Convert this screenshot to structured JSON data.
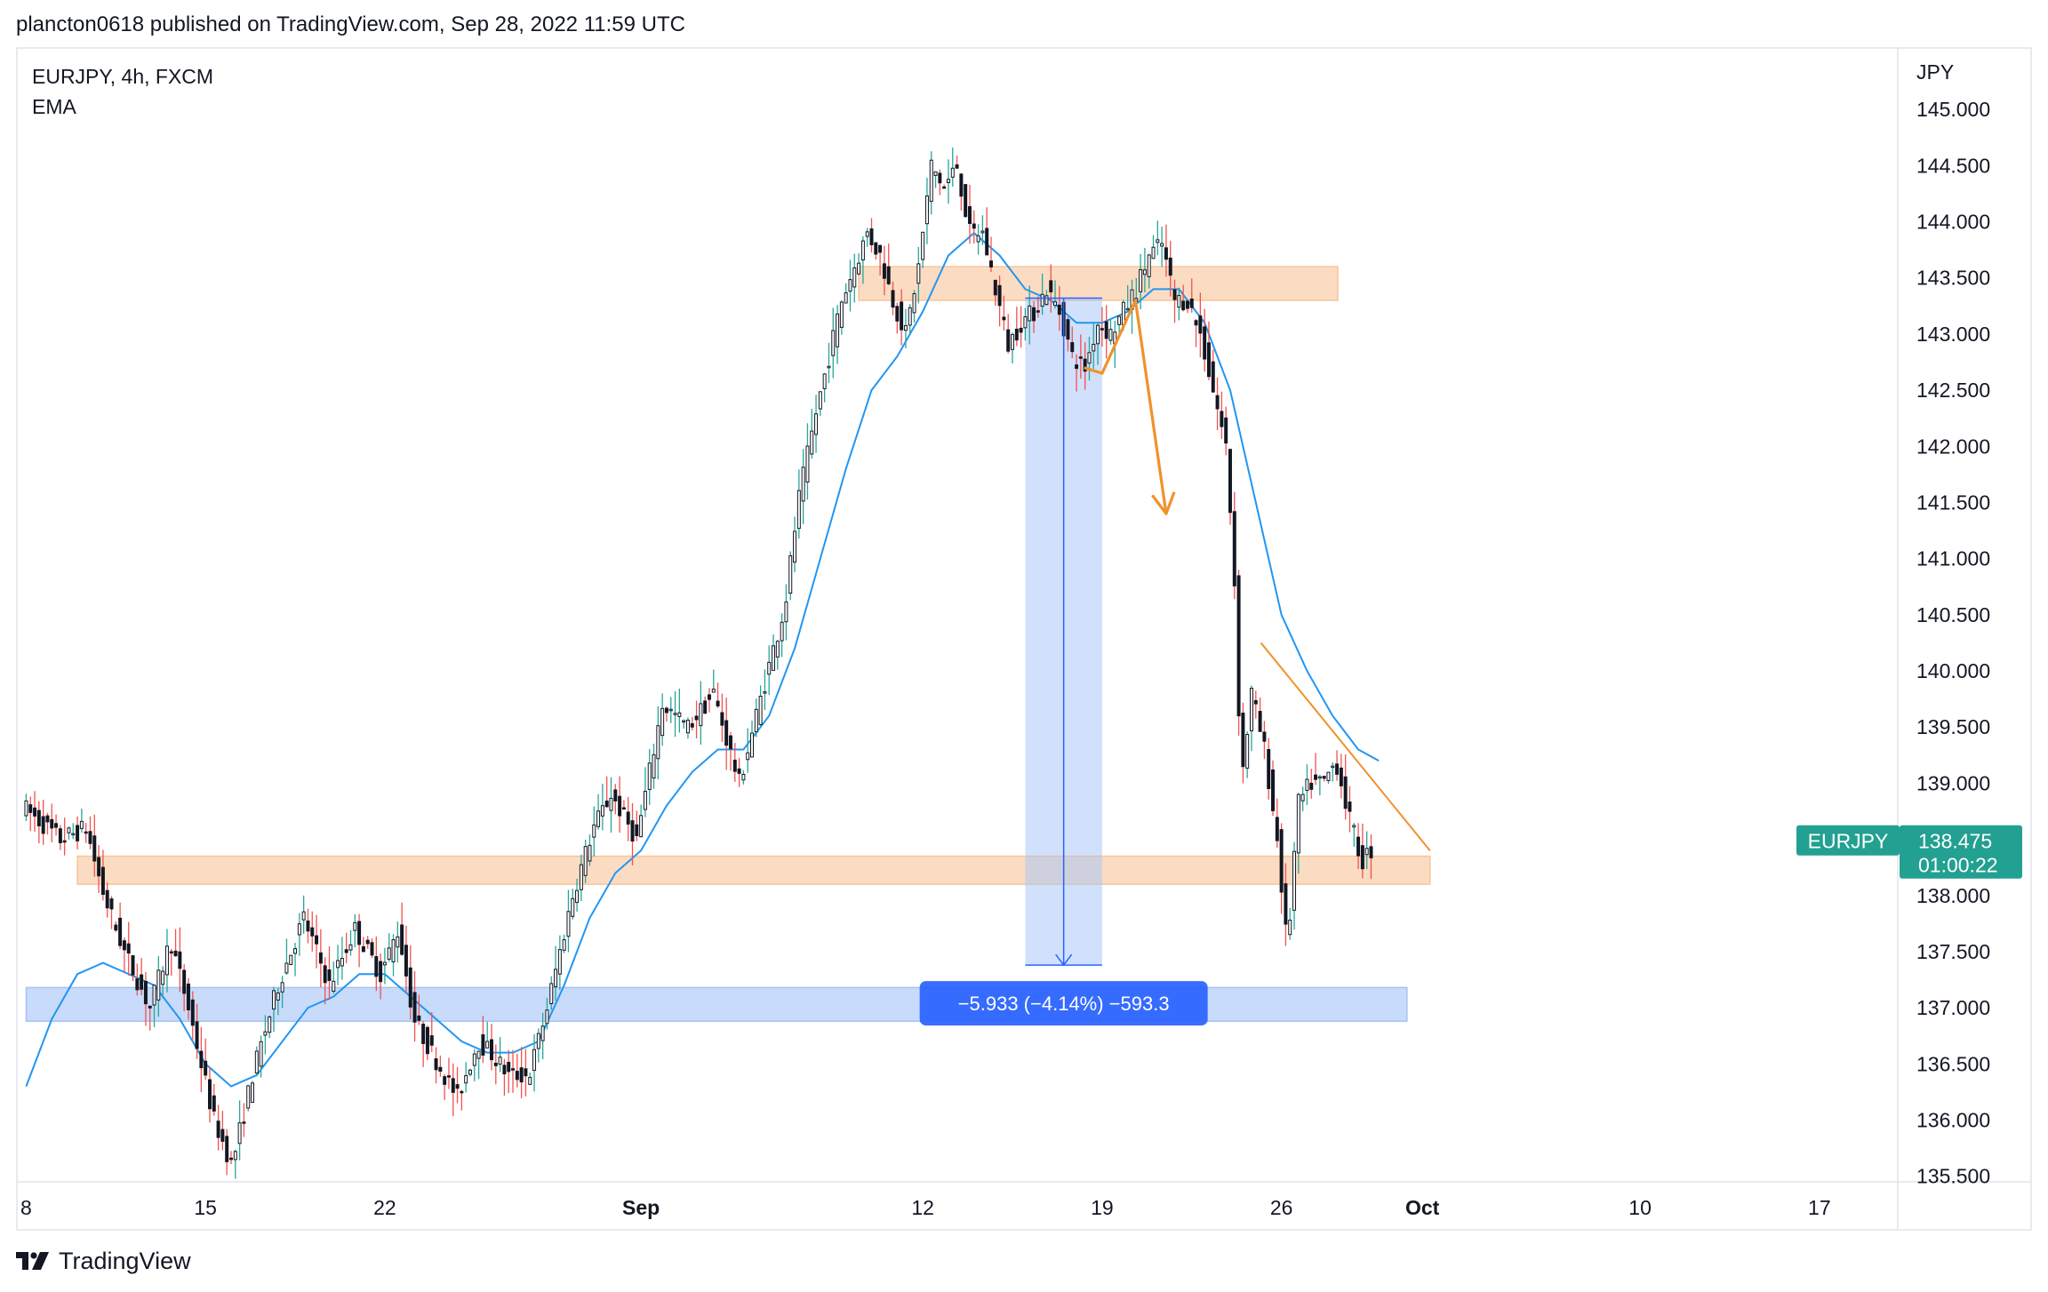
{
  "header": {
    "published": "plancton0618 published on TradingView.com, Sep 28, 2022 11:59 UTC"
  },
  "legend": {
    "symbol": "EURJPY, 4h, FXCM",
    "indicator": "EMA"
  },
  "footer": {
    "brand": "TradingView",
    "logo_icon": "tradingview-logo-icon"
  },
  "colors": {
    "up": "#26a69a",
    "down": "#ef5350",
    "ema": "#2196f3",
    "resistance_zone": "#f8c59a",
    "target_zone": "#a4c3f7",
    "measure": "#2962ff",
    "arrow": "#f0922b",
    "badge": "#22a091"
  },
  "chart_data": {
    "type": "candlestick",
    "symbol": "EURJPY",
    "interval": "4h",
    "source": "FXCM",
    "currency": "JPY",
    "y_ticks": [
      "145.000",
      "144.500",
      "144.000",
      "143.500",
      "143.000",
      "142.500",
      "142.000",
      "141.500",
      "141.000",
      "140.500",
      "140.000",
      "139.500",
      "139.000",
      "138.000",
      "137.500",
      "137.000",
      "136.500",
      "136.000",
      "135.500"
    ],
    "y_tick_values": [
      145.0,
      144.5,
      144.0,
      143.5,
      143.0,
      142.5,
      142.0,
      141.5,
      141.0,
      140.5,
      140.0,
      139.5,
      139.0,
      138.0,
      137.5,
      137.0,
      136.5,
      136.0,
      135.5
    ],
    "ylim": [
      135.45,
      145.5
    ],
    "x_ticks": [
      {
        "label": "8",
        "day": 8,
        "bold": false
      },
      {
        "label": "15",
        "day": 15,
        "bold": false
      },
      {
        "label": "22",
        "day": 22,
        "bold": false
      },
      {
        "label": "Sep",
        "day": 32,
        "bold": true
      },
      {
        "label": "12",
        "day": 43,
        "bold": false
      },
      {
        "label": "19",
        "day": 50,
        "bold": false
      },
      {
        "label": "26",
        "day": 57,
        "bold": false
      },
      {
        "label": "Oct",
        "day": 62.5,
        "bold": true
      },
      {
        "label": "10",
        "day": 71,
        "bold": false
      },
      {
        "label": "17",
        "day": 78,
        "bold": false
      }
    ],
    "xlim_days": [
      7.95,
      80.4
    ],
    "day_index_note": "August day number; Sep N = 31 + N",
    "anchors": [
      [
        8.0,
        138.8
      ],
      [
        9.5,
        138.5
      ],
      [
        10.5,
        138.6
      ],
      [
        11.2,
        138.0
      ],
      [
        12.0,
        137.5
      ],
      [
        13.0,
        137.0
      ],
      [
        13.8,
        137.6
      ],
      [
        14.5,
        137.0
      ],
      [
        15.5,
        136.0
      ],
      [
        16.2,
        135.6
      ],
      [
        17.0,
        136.4
      ],
      [
        18.0,
        137.2
      ],
      [
        19.0,
        137.8
      ],
      [
        20.0,
        137.2
      ],
      [
        21.0,
        137.7
      ],
      [
        22.0,
        137.3
      ],
      [
        22.7,
        137.7
      ],
      [
        23.3,
        136.9
      ],
      [
        24.0,
        136.6
      ],
      [
        25.0,
        136.2
      ],
      [
        25.8,
        136.7
      ],
      [
        26.3,
        136.6
      ],
      [
        27.0,
        136.4
      ],
      [
        27.8,
        136.4
      ],
      [
        28.5,
        137.0
      ],
      [
        29.5,
        138.0
      ],
      [
        30.3,
        138.6
      ],
      [
        31.0,
        138.9
      ],
      [
        32.0,
        138.5
      ],
      [
        32.5,
        139.1
      ],
      [
        33.0,
        139.7
      ],
      [
        34.0,
        139.5
      ],
      [
        35.0,
        139.8
      ],
      [
        36.0,
        139.0
      ],
      [
        37.0,
        139.9
      ],
      [
        37.8,
        140.6
      ],
      [
        38.3,
        141.5
      ],
      [
        39.0,
        142.3
      ],
      [
        40.0,
        143.3
      ],
      [
        41.0,
        143.9
      ],
      [
        41.5,
        143.7
      ],
      [
        42.0,
        143.3
      ],
      [
        42.5,
        143.0
      ],
      [
        43.0,
        143.6
      ],
      [
        43.5,
        144.5
      ],
      [
        44.0,
        144.3
      ],
      [
        44.5,
        144.5
      ],
      [
        45.0,
        143.9
      ],
      [
        45.5,
        143.9
      ],
      [
        46.0,
        143.4
      ],
      [
        46.5,
        142.9
      ],
      [
        47.0,
        143.1
      ],
      [
        47.5,
        143.2
      ],
      [
        48.0,
        143.4
      ],
      [
        48.5,
        143.2
      ],
      [
        49.0,
        142.8
      ],
      [
        49.5,
        142.7
      ],
      [
        50.0,
        143.1
      ],
      [
        50.5,
        143.0
      ],
      [
        51.0,
        143.2
      ],
      [
        51.5,
        143.4
      ],
      [
        52.0,
        143.7
      ],
      [
        52.5,
        143.8
      ],
      [
        53.0,
        143.3
      ],
      [
        53.5,
        143.3
      ],
      [
        54.0,
        143.0
      ],
      [
        54.5,
        142.5
      ],
      [
        55.0,
        142.0
      ],
      [
        55.3,
        141.0
      ],
      [
        55.6,
        139.0
      ],
      [
        56.0,
        139.8
      ],
      [
        56.5,
        139.3
      ],
      [
        57.0,
        138.5
      ],
      [
        57.4,
        137.5
      ],
      [
        57.8,
        138.8
      ],
      [
        58.3,
        139.0
      ],
      [
        58.8,
        139.0
      ],
      [
        59.3,
        139.2
      ],
      [
        59.8,
        138.7
      ],
      [
        60.3,
        138.3
      ],
      [
        60.6,
        138.4
      ]
    ],
    "candles_per_day": 6,
    "ema": [
      [
        8.0,
        136.3
      ],
      [
        9.0,
        136.9
      ],
      [
        10.0,
        137.3
      ],
      [
        11.0,
        137.4
      ],
      [
        12.0,
        137.3
      ],
      [
        13.0,
        137.2
      ],
      [
        14.0,
        136.9
      ],
      [
        15.0,
        136.5
      ],
      [
        16.0,
        136.3
      ],
      [
        17.0,
        136.4
      ],
      [
        18.0,
        136.7
      ],
      [
        19.0,
        137.0
      ],
      [
        20.0,
        137.1
      ],
      [
        21.0,
        137.3
      ],
      [
        22.0,
        137.3
      ],
      [
        23.0,
        137.1
      ],
      [
        24.0,
        136.9
      ],
      [
        25.0,
        136.7
      ],
      [
        26.0,
        136.6
      ],
      [
        27.0,
        136.6
      ],
      [
        28.0,
        136.7
      ],
      [
        29.0,
        137.2
      ],
      [
        30.0,
        137.8
      ],
      [
        31.0,
        138.2
      ],
      [
        32.0,
        138.4
      ],
      [
        33.0,
        138.8
      ],
      [
        34.0,
        139.1
      ],
      [
        35.0,
        139.3
      ],
      [
        36.0,
        139.3
      ],
      [
        37.0,
        139.6
      ],
      [
        38.0,
        140.2
      ],
      [
        39.0,
        141.0
      ],
      [
        40.0,
        141.8
      ],
      [
        41.0,
        142.5
      ],
      [
        42.0,
        142.8
      ],
      [
        43.0,
        143.2
      ],
      [
        44.0,
        143.7
      ],
      [
        45.0,
        143.9
      ],
      [
        46.0,
        143.7
      ],
      [
        47.0,
        143.4
      ],
      [
        48.0,
        143.3
      ],
      [
        49.0,
        143.1
      ],
      [
        50.0,
        143.1
      ],
      [
        51.0,
        143.2
      ],
      [
        52.0,
        143.4
      ],
      [
        53.0,
        143.4
      ],
      [
        54.0,
        143.1
      ],
      [
        55.0,
        142.5
      ],
      [
        56.0,
        141.5
      ],
      [
        57.0,
        140.5
      ],
      [
        58.0,
        140.0
      ],
      [
        59.0,
        139.6
      ],
      [
        60.0,
        139.3
      ],
      [
        60.8,
        139.2
      ]
    ],
    "zones": [
      {
        "name": "resistance",
        "day_from": 40.5,
        "day_to": 59.2,
        "low": 143.3,
        "high": 143.6,
        "color": "#f8c59a"
      },
      {
        "name": "support",
        "day_from": 10.0,
        "day_to": 62.8,
        "low": 138.1,
        "high": 138.35,
        "color": "#f8c59a"
      },
      {
        "name": "target",
        "day_from": 8.0,
        "day_to": 61.9,
        "low": 136.88,
        "high": 137.18,
        "color": "#a4c3f7"
      }
    ],
    "measure": {
      "day_from": 47.0,
      "day_to": 50.0,
      "from": 143.32,
      "to": 137.38,
      "label": "−5.933 (−4.14%) −593.3"
    },
    "orange_path": [
      [
        49.3,
        142.7
      ],
      [
        50.0,
        142.65
      ],
      [
        51.3,
        143.3
      ],
      [
        52.5,
        141.4
      ]
    ],
    "trendline": [
      [
        56.2,
        140.25
      ],
      [
        62.8,
        138.4
      ]
    ],
    "last_price": {
      "symbol": "EURJPY",
      "value": 138.475,
      "price_label": "138.475",
      "countdown": "01:00:22"
    }
  }
}
